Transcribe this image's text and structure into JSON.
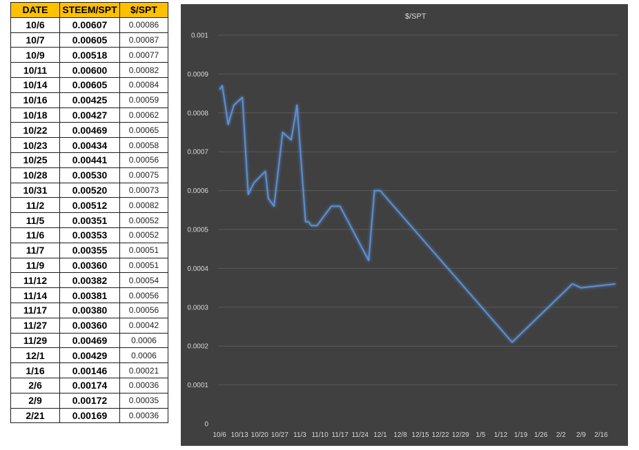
{
  "table": {
    "headers": [
      "DATE",
      "STEEM/SPT",
      "$/SPT"
    ],
    "rows": [
      [
        "10/6",
        "0.00607",
        "0.00086"
      ],
      [
        "10/7",
        "0.00605",
        "0.00087"
      ],
      [
        "10/9",
        "0.00518",
        "0.00077"
      ],
      [
        "10/11",
        "0.00600",
        "0.00082"
      ],
      [
        "10/14",
        "0.00605",
        "0.00084"
      ],
      [
        "10/16",
        "0.00425",
        "0.00059"
      ],
      [
        "10/18",
        "0.00427",
        "0.00062"
      ],
      [
        "10/22",
        "0.00469",
        "0.00065"
      ],
      [
        "10/23",
        "0.00434",
        "0.00058"
      ],
      [
        "10/25",
        "0.00441",
        "0.00056"
      ],
      [
        "10/28",
        "0.00530",
        "0.00075"
      ],
      [
        "10/31",
        "0.00520",
        "0.00073"
      ],
      [
        "11/2",
        "0.00512",
        "0.00082"
      ],
      [
        "11/5",
        "0.00351",
        "0.00052"
      ],
      [
        "11/6",
        "0.00353",
        "0.00052"
      ],
      [
        "11/7",
        "0.00355",
        "0.00051"
      ],
      [
        "11/9",
        "0.00360",
        "0.00051"
      ],
      [
        "11/12",
        "0.00382",
        "0.00054"
      ],
      [
        "11/14",
        "0.00381",
        "0.00056"
      ],
      [
        "11/17",
        "0.00380",
        "0.00056"
      ],
      [
        "11/27",
        "0.00360",
        "0.00042"
      ],
      [
        "11/29",
        "0.00469",
        "0.0006"
      ],
      [
        "12/1",
        "0.00429",
        "0.0006"
      ],
      [
        "1/16",
        "0.00146",
        "0.00021"
      ],
      [
        "2/6",
        "0.00174",
        "0.00036"
      ],
      [
        "2/9",
        "0.00172",
        "0.00035"
      ],
      [
        "2/21",
        "0.00169",
        "0.00036"
      ]
    ]
  },
  "chart_data": {
    "type": "line",
    "title": "",
    "xlabel": "",
    "ylabel": "",
    "legend": "top-center",
    "grid": true,
    "ylim": [
      0,
      0.001
    ],
    "yticks": [
      "0",
      "0.0001",
      "0.0002",
      "0.0003",
      "0.0004",
      "0.0005",
      "0.0006",
      "0.0007",
      "0.0008",
      "0.0009",
      "0.001"
    ],
    "x_axis_type": "date",
    "xlim": [
      "10/6",
      "2/21"
    ],
    "xticks": [
      "10/6",
      "10/13",
      "10/20",
      "10/27",
      "11/3",
      "11/10",
      "11/17",
      "11/24",
      "12/1",
      "12/8",
      "12/15",
      "12/22",
      "12/29",
      "1/5",
      "1/12",
      "1/19",
      "1/26",
      "2/2",
      "2/9",
      "2/16"
    ],
    "series": [
      {
        "name": "$/SPT",
        "color": "#5b8fd6",
        "x": [
          "10/6",
          "10/7",
          "10/9",
          "10/11",
          "10/14",
          "10/16",
          "10/18",
          "10/22",
          "10/23",
          "10/25",
          "10/28",
          "10/31",
          "11/2",
          "11/5",
          "11/6",
          "11/7",
          "11/9",
          "11/12",
          "11/14",
          "11/17",
          "11/27",
          "11/29",
          "12/1",
          "1/16",
          "2/6",
          "2/9",
          "2/21"
        ],
        "values": [
          0.00086,
          0.00087,
          0.00077,
          0.00082,
          0.00084,
          0.00059,
          0.00062,
          0.00065,
          0.00058,
          0.00056,
          0.00075,
          0.00073,
          0.00082,
          0.00052,
          0.00052,
          0.00051,
          0.00051,
          0.00054,
          0.00056,
          0.00056,
          0.00042,
          0.0006,
          0.0006,
          0.00021,
          0.00036,
          0.00035,
          0.00036
        ]
      }
    ]
  }
}
